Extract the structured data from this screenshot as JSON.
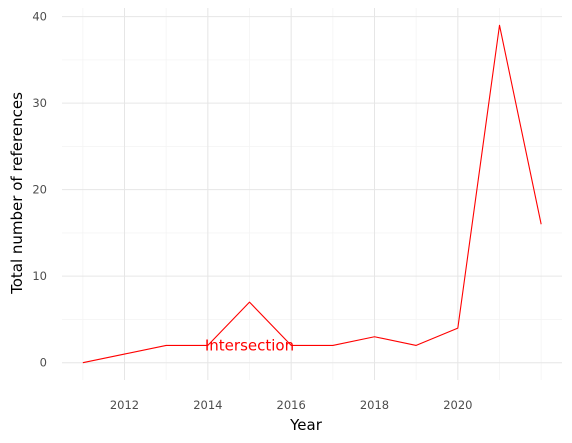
{
  "chart_data": {
    "type": "line",
    "xlabel": "Year",
    "ylabel": "Total number of references",
    "xlim": [
      2010.5,
      2022.5
    ],
    "ylim": [
      -2,
      41
    ],
    "x_ticks": [
      2012,
      2014,
      2016,
      2018,
      2020
    ],
    "x_tick_labels": [
      "2012",
      "2014",
      "2016",
      "2018",
      "2020"
    ],
    "x_minor_ticks": [
      2011,
      2013,
      2015,
      2017,
      2019,
      2021,
      2022
    ],
    "y_ticks": [
      0,
      10,
      20,
      30,
      40
    ],
    "y_tick_labels": [
      "0",
      "10",
      "20",
      "30",
      "40"
    ],
    "y_minor_ticks": [
      5,
      15,
      25,
      35
    ],
    "grid": true,
    "series": [
      {
        "color": "#ff0000",
        "x": [
          2011,
          2012,
          2013,
          2014,
          2015,
          2016,
          2017,
          2018,
          2019,
          2020,
          2021,
          2022
        ],
        "values": [
          0,
          1,
          2,
          2,
          7,
          2,
          2,
          3,
          2,
          4,
          39,
          16
        ]
      }
    ],
    "annotations": [
      {
        "text": "Intersection",
        "x": 2015,
        "y": 2,
        "color": "#ff0000"
      }
    ]
  }
}
